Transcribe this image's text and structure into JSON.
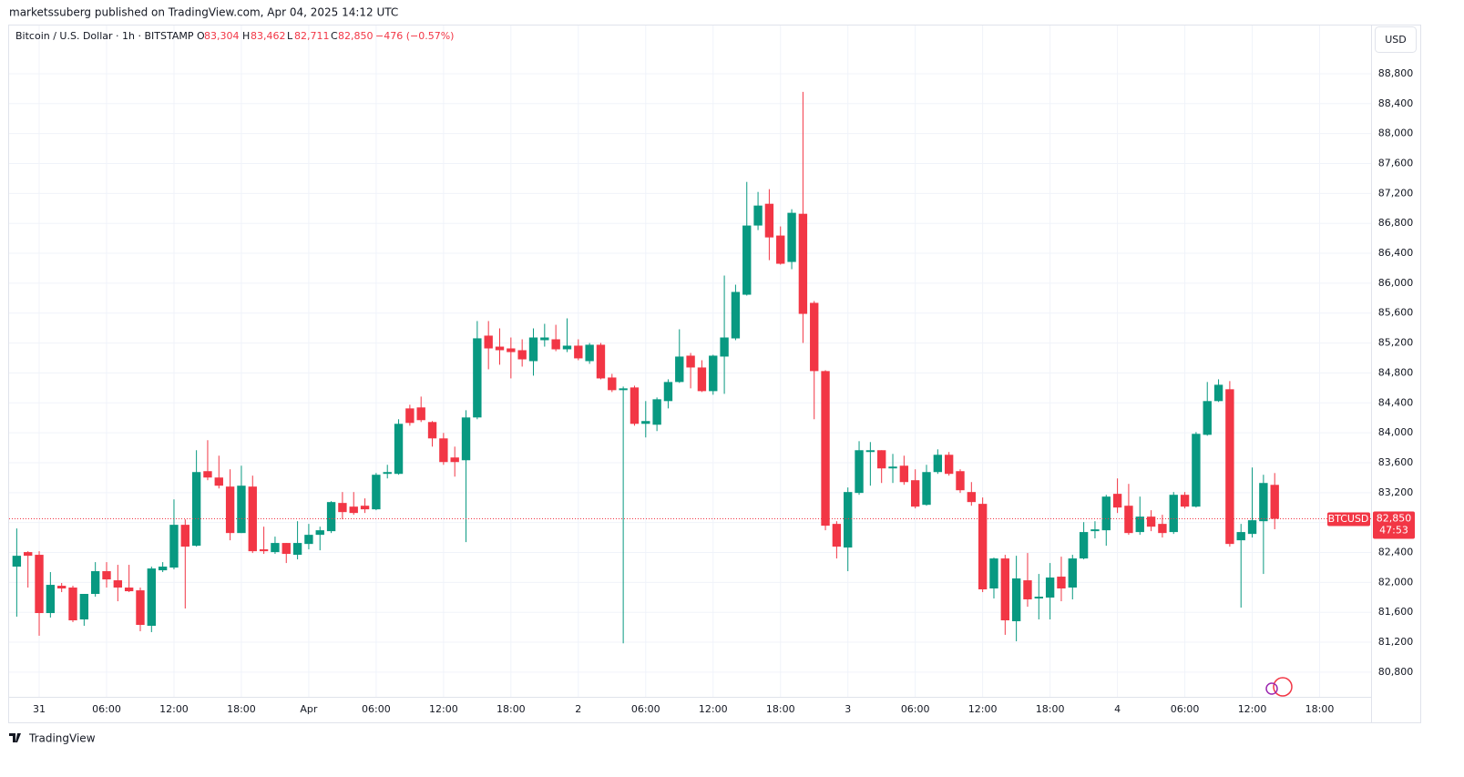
{
  "header": {
    "published": "marketssuberg published on TradingView.com, Apr 04, 2025 14:12 UTC",
    "symbol_line": "Bitcoin / U.S. Dollar · 1h · BITSTAMP",
    "ohlc": [
      {
        "key": "O",
        "value": "83,304"
      },
      {
        "key": "H",
        "value": "83,462"
      },
      {
        "key": "L",
        "value": "82,711"
      },
      {
        "key": "C",
        "value": "82,850"
      }
    ],
    "change": "−476 (−0.57%)",
    "currency": "USD",
    "logo": "TradingView"
  },
  "chart_data": {
    "type": "candlestick",
    "up_color": "#089981",
    "down_color": "#f23645",
    "grid": true,
    "ylim": [
      80470,
      89445
    ],
    "yticks": [
      {
        "value": 80800,
        "label": "80,800"
      },
      {
        "value": 81200,
        "label": "81,200"
      },
      {
        "value": 81600,
        "label": "81,600"
      },
      {
        "value": 82000,
        "label": "82,000"
      },
      {
        "value": 82400,
        "label": "82,400"
      },
      {
        "value": 82800,
        "label": "82,800"
      },
      {
        "value": 83200,
        "label": "83,200"
      },
      {
        "value": 83600,
        "label": "83,600"
      },
      {
        "value": 84000,
        "label": "84,000"
      },
      {
        "value": 84400,
        "label": "84,400"
      },
      {
        "value": 84800,
        "label": "84,800"
      },
      {
        "value": 85200,
        "label": "85,200"
      },
      {
        "value": 85600,
        "label": "85,600"
      },
      {
        "value": 86000,
        "label": "86,000"
      },
      {
        "value": 86400,
        "label": "86,400"
      },
      {
        "value": 86800,
        "label": "86,800"
      },
      {
        "value": 87200,
        "label": "87,200"
      },
      {
        "value": 87600,
        "label": "87,600"
      },
      {
        "value": 88000,
        "label": "88,000"
      },
      {
        "value": 88400,
        "label": "88,400"
      },
      {
        "value": 88800,
        "label": "88,800"
      }
    ],
    "categories": [
      null,
      null,
      "31",
      null,
      null,
      null,
      null,
      null,
      "06:00",
      null,
      null,
      null,
      null,
      null,
      "12:00",
      null,
      null,
      null,
      null,
      null,
      "18:00",
      null,
      null,
      null,
      null,
      null,
      "Apr",
      null,
      null,
      null,
      null,
      null,
      "06:00",
      null,
      null,
      null,
      null,
      null,
      "12:00",
      null,
      null,
      null,
      null,
      null,
      "18:00",
      null,
      null,
      null,
      null,
      null,
      "2",
      null,
      null,
      null,
      null,
      null,
      "06:00",
      null,
      null,
      null,
      null,
      null,
      "12:00",
      null,
      null,
      null,
      null,
      null,
      "18:00",
      null,
      null,
      null,
      null,
      null,
      "3",
      null,
      null,
      null,
      null,
      null,
      "06:00",
      null,
      null,
      null,
      null,
      null,
      "12:00",
      null,
      null,
      null,
      null,
      null,
      "18:00",
      null,
      null,
      null,
      null,
      null,
      "4",
      null,
      null,
      null,
      null,
      null,
      "06:00",
      null,
      null,
      null,
      null,
      null,
      "12:00",
      null,
      null,
      null,
      null,
      null,
      "18:00",
      null,
      null,
      null,
      null
    ],
    "open": [
      82211,
      82405,
      82369,
      81590,
      81955,
      81931,
      81505,
      81846,
      82150,
      82028,
      81931,
      81894,
      81420,
      82162,
      82198,
      82770,
      82490,
      83487,
      83402,
      83281,
      82660,
      83281,
      82442,
      82405,
      82527,
      82369,
      82514,
      82636,
      82685,
      83062,
      83013,
      83025,
      82977,
      83451,
      83451,
      84326,
      84339,
      84144,
      83925,
      83670,
      83633,
      84205,
      85299,
      85152,
      85128,
      85104,
      84958,
      85238,
      85250,
      85116,
      85165,
      84958,
      85177,
      84739,
      84570,
      84606,
      84120,
      84108,
      84424,
      84679,
      85031,
      84873,
      84557,
      85019,
      85262,
      85846,
      86771,
      87062,
      86637,
      86284,
      86928,
      85737,
      84825,
      82782,
      82466,
      83196,
      83743,
      83767,
      83524,
      83560,
      83366,
      83037,
      83475,
      83706,
      83487,
      83208,
      83050,
      81919,
      82320,
      81481,
      82028,
      81785,
      81797,
      82077,
      81931,
      82320,
      82685,
      82697,
      83184,
      83025,
      82673,
      82879,
      82782,
      82673,
      83171,
      83013,
      83973,
      84424,
      84582,
      82563,
      82648,
      82818,
      83304,
      null,
      null,
      null,
      null,
      null,
      null,
      null,
      null
    ],
    "high": [
      82721,
      82417,
      82417,
      82138,
      81992,
      81955,
      81846,
      82271,
      82271,
      82235,
      82235,
      81931,
      82211,
      82271,
      83110,
      82843,
      83767,
      83901,
      83694,
      83512,
      83560,
      83427,
      82745,
      82612,
      82527,
      82818,
      82782,
      82745,
      83086,
      83208,
      83208,
      83123,
      83463,
      83572,
      84181,
      84375,
      84484,
      84157,
      83998,
      83815,
      84302,
      85494,
      85494,
      85396,
      85274,
      85250,
      85396,
      85457,
      85444,
      85530,
      85250,
      85201,
      85201,
      84788,
      84618,
      84630,
      84424,
      84472,
      84715,
      85384,
      85067,
      84970,
      85043,
      86102,
      85980,
      87354,
      87220,
      87257,
      86759,
      86989,
      88557,
      85761,
      84837,
      82818,
      83269,
      83888,
      83876,
      83767,
      83718,
      83694,
      83512,
      83572,
      83779,
      83743,
      83512,
      83341,
      83135,
      82332,
      82369,
      82356,
      82393,
      82113,
      82259,
      82344,
      82369,
      82806,
      82818,
      83171,
      83390,
      83317,
      83147,
      82965,
      82904,
      83208,
      83208,
      84010,
      84679,
      84715,
      84691,
      82782,
      83536,
      83439,
      83462,
      null,
      null,
      null,
      null,
      null,
      null,
      null,
      null
    ],
    "low": [
      81542,
      81931,
      81287,
      81530,
      81870,
      81469,
      81420,
      81809,
      81931,
      81748,
      81870,
      81347,
      81335,
      82138,
      82174,
      81651,
      82478,
      83366,
      83256,
      82563,
      82660,
      82393,
      82381,
      82381,
      82259,
      82308,
      82442,
      82429,
      82660,
      82843,
      82904,
      82928,
      82965,
      83390,
      83439,
      84095,
      84144,
      83815,
      83572,
      83414,
      82539,
      84181,
      84849,
      84910,
      84727,
      84885,
      84764,
      85152,
      85091,
      85079,
      84970,
      84922,
      84715,
      84545,
      81185,
      84095,
      83938,
      84023,
      84326,
      84667,
      84594,
      84545,
      84509,
      84521,
      85238,
      85834,
      86710,
      86308,
      86248,
      86187,
      85201,
      84181,
      82697,
      82320,
      82150,
      83171,
      83293,
      83329,
      83329,
      83305,
      82989,
      83025,
      83451,
      83427,
      83196,
      83025,
      81870,
      81785,
      81299,
      81213,
      81675,
      81505,
      81505,
      81748,
      81773,
      82308,
      82588,
      82490,
      82928,
      82636,
      82636,
      82685,
      82600,
      82648,
      82989,
      83001,
      83961,
      84412,
      82478,
      81663,
      82600,
      82113,
      82711,
      null,
      null,
      null,
      null,
      null,
      null,
      null,
      null
    ],
    "close": [
      82356,
      82356,
      81590,
      81967,
      81919,
      81493,
      81846,
      82150,
      82040,
      81931,
      81882,
      81432,
      82186,
      82211,
      82770,
      82478,
      83475,
      83402,
      83293,
      82660,
      83293,
      82417,
      82417,
      82527,
      82381,
      82527,
      82636,
      82697,
      83074,
      82940,
      82928,
      82977,
      83439,
      83475,
      84120,
      84132,
      84169,
      83925,
      83609,
      83609,
      84205,
      85263,
      85128,
      85104,
      85079,
      84982,
      85274,
      85274,
      85116,
      85165,
      84995,
      85177,
      84727,
      84570,
      84594,
      84120,
      84157,
      84448,
      84679,
      85019,
      84873,
      84557,
      85031,
      85274,
      85883,
      86771,
      87038,
      86612,
      86260,
      86941,
      85590,
      84825,
      82758,
      82478,
      83208,
      83767,
      83767,
      83524,
      83548,
      83341,
      83013,
      83475,
      83706,
      83451,
      83232,
      83074,
      81907,
      82320,
      81493,
      82053,
      81773,
      81809,
      82065,
      81919,
      82320,
      82673,
      82709,
      83147,
      83001,
      82660,
      82879,
      82745,
      82660,
      83171,
      83013,
      83986,
      84424,
      84642,
      82514,
      82673,
      82831,
      83329,
      82850,
      null,
      null,
      null,
      null,
      null,
      null,
      null,
      null
    ],
    "last_price": {
      "value": 82850,
      "label": "82,850"
    },
    "symbol": "BTCUSD",
    "countdown": "47:53"
  }
}
